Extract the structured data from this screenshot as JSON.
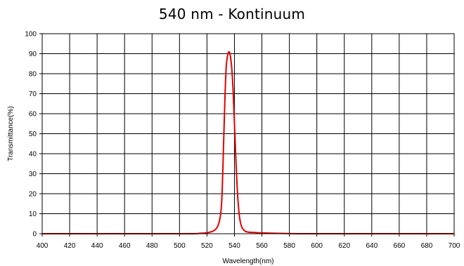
{
  "chart_data": {
    "type": "line",
    "title": "540 nm - Kontinuum",
    "xlabel": "Wavelength(nm)",
    "ylabel": "Transmittance(%)",
    "xlim": [
      400,
      700
    ],
    "ylim": [
      0,
      100
    ],
    "x_ticks": [
      400,
      420,
      440,
      460,
      480,
      500,
      520,
      540,
      560,
      580,
      600,
      620,
      640,
      660,
      680,
      700
    ],
    "y_ticks": [
      0,
      10,
      20,
      30,
      40,
      50,
      60,
      70,
      80,
      90,
      100
    ],
    "grid": true,
    "line_color": "#e00000",
    "series": [
      {
        "x": [
          400,
          500,
          515,
          520,
          525,
          528,
          530,
          531,
          532,
          533,
          534,
          535,
          536,
          537,
          538,
          539,
          540,
          541,
          542,
          543,
          544,
          545,
          546,
          548,
          550,
          555,
          560,
          580,
          600,
          700
        ],
        "y": [
          0,
          0,
          0.2,
          0.5,
          1.5,
          4,
          10,
          20,
          42,
          66,
          83,
          89,
          91,
          89,
          83,
          72,
          55,
          38,
          23,
          13,
          7,
          4,
          2.5,
          1.2,
          0.8,
          0.6,
          0.4,
          0.1,
          0,
          0
        ]
      }
    ]
  }
}
